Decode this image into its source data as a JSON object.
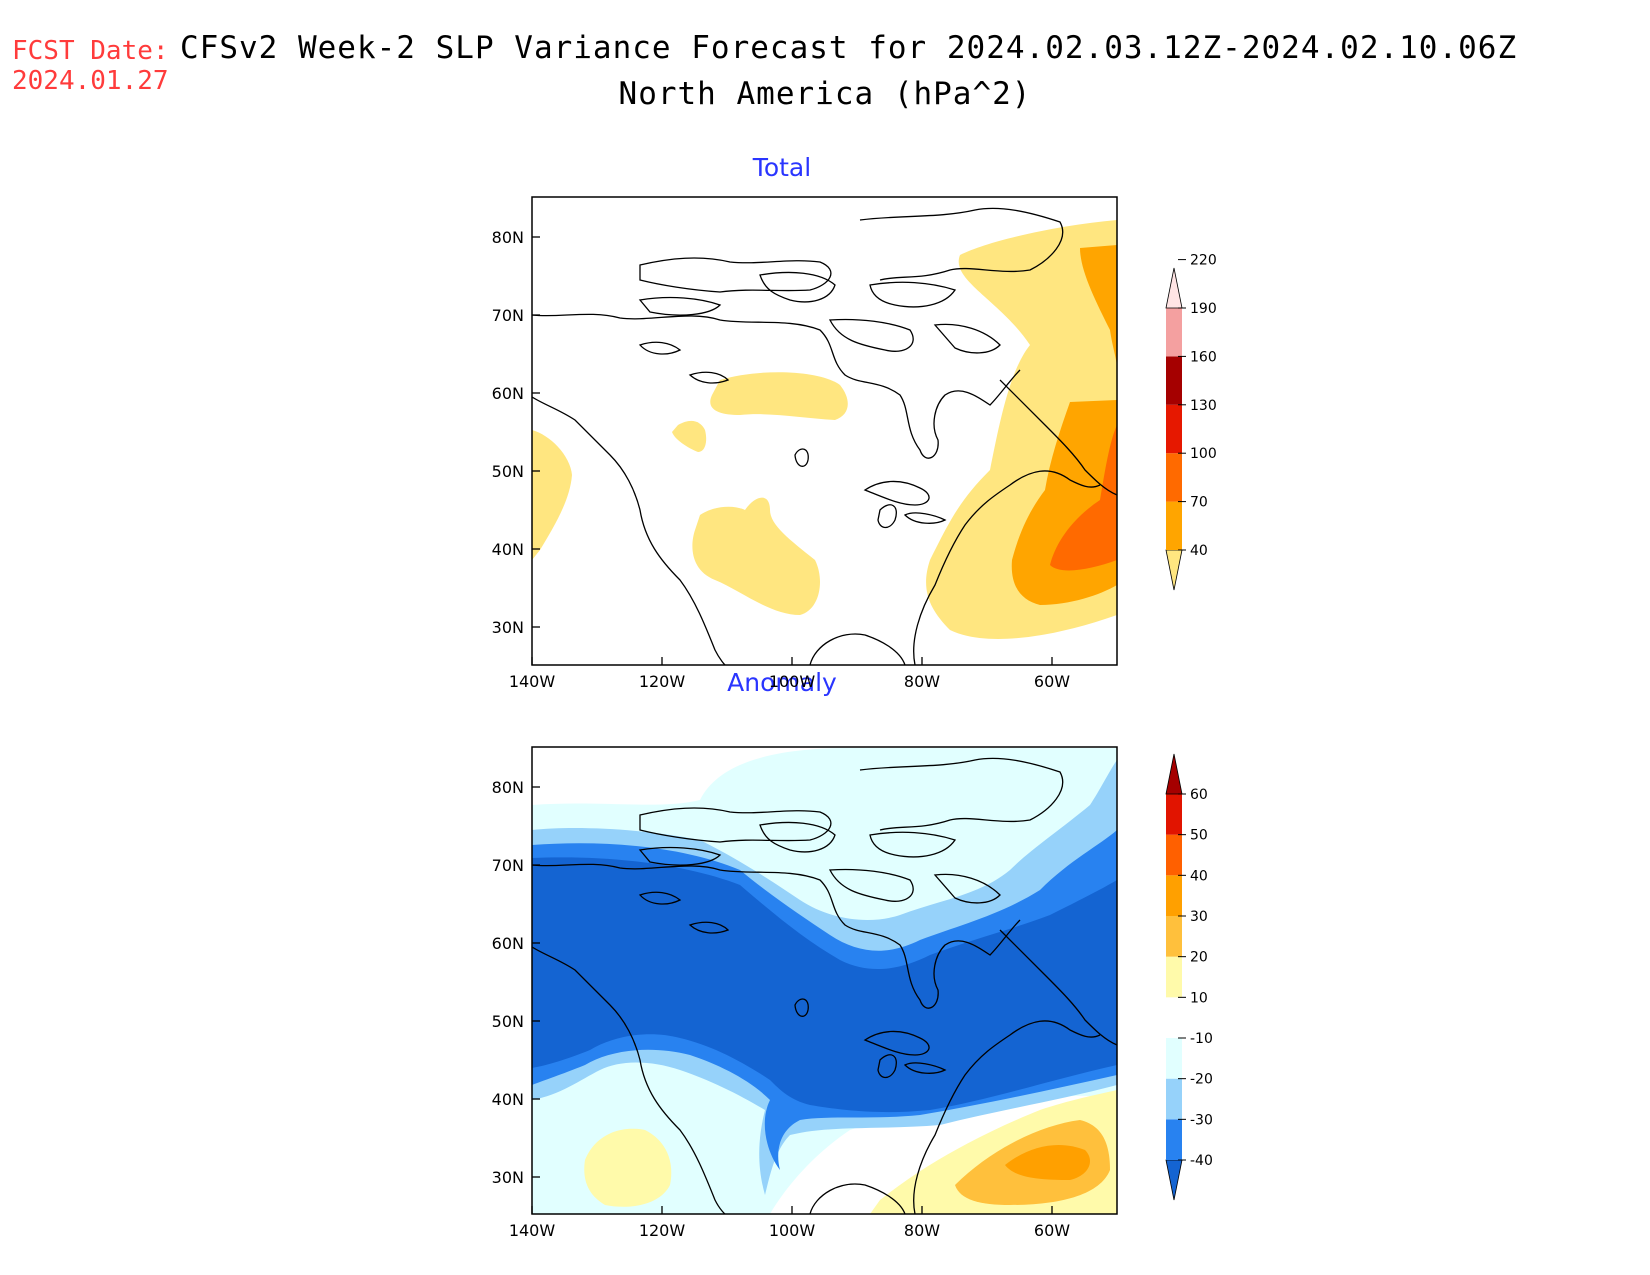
{
  "header": {
    "fcst_label": "FCST Date:",
    "fcst_date": "2024.01.27",
    "title": "CFSv2 Week-2 SLP Variance Forecast for 2024.02.03.12Z-2024.02.10.06Z",
    "subtitle": "North America (hPa^2)"
  },
  "axes": {
    "lat_ticks": [
      "80N",
      "70N",
      "60N",
      "50N",
      "40N",
      "30N"
    ],
    "lon_ticks": [
      "140W",
      "120W",
      "100W",
      "80W",
      "60W"
    ]
  },
  "panels": [
    {
      "title": "Total",
      "colorbar": {
        "levels": [
          "40",
          "70",
          "100",
          "130",
          "160",
          "190",
          "220"
        ],
        "colors": [
          "#ffe680",
          "#ffa500",
          "#ff6a00",
          "#e61800",
          "#a50000",
          "#f4a0a0",
          "#ffe4e4"
        ]
      }
    },
    {
      "title": "Anomaly",
      "colorbar": {
        "levels": [
          "-40",
          "-30",
          "-20",
          "-10",
          "10",
          "20",
          "30",
          "40",
          "50",
          "60"
        ],
        "colors": [
          "#1464d2",
          "#2882f0",
          "#96d2fa",
          "#e1ffff",
          "#ffffff",
          "#fffaaa",
          "#ffc03c",
          "#ffa000",
          "#ff6000",
          "#e11400",
          "#a50000"
        ]
      }
    }
  ]
}
